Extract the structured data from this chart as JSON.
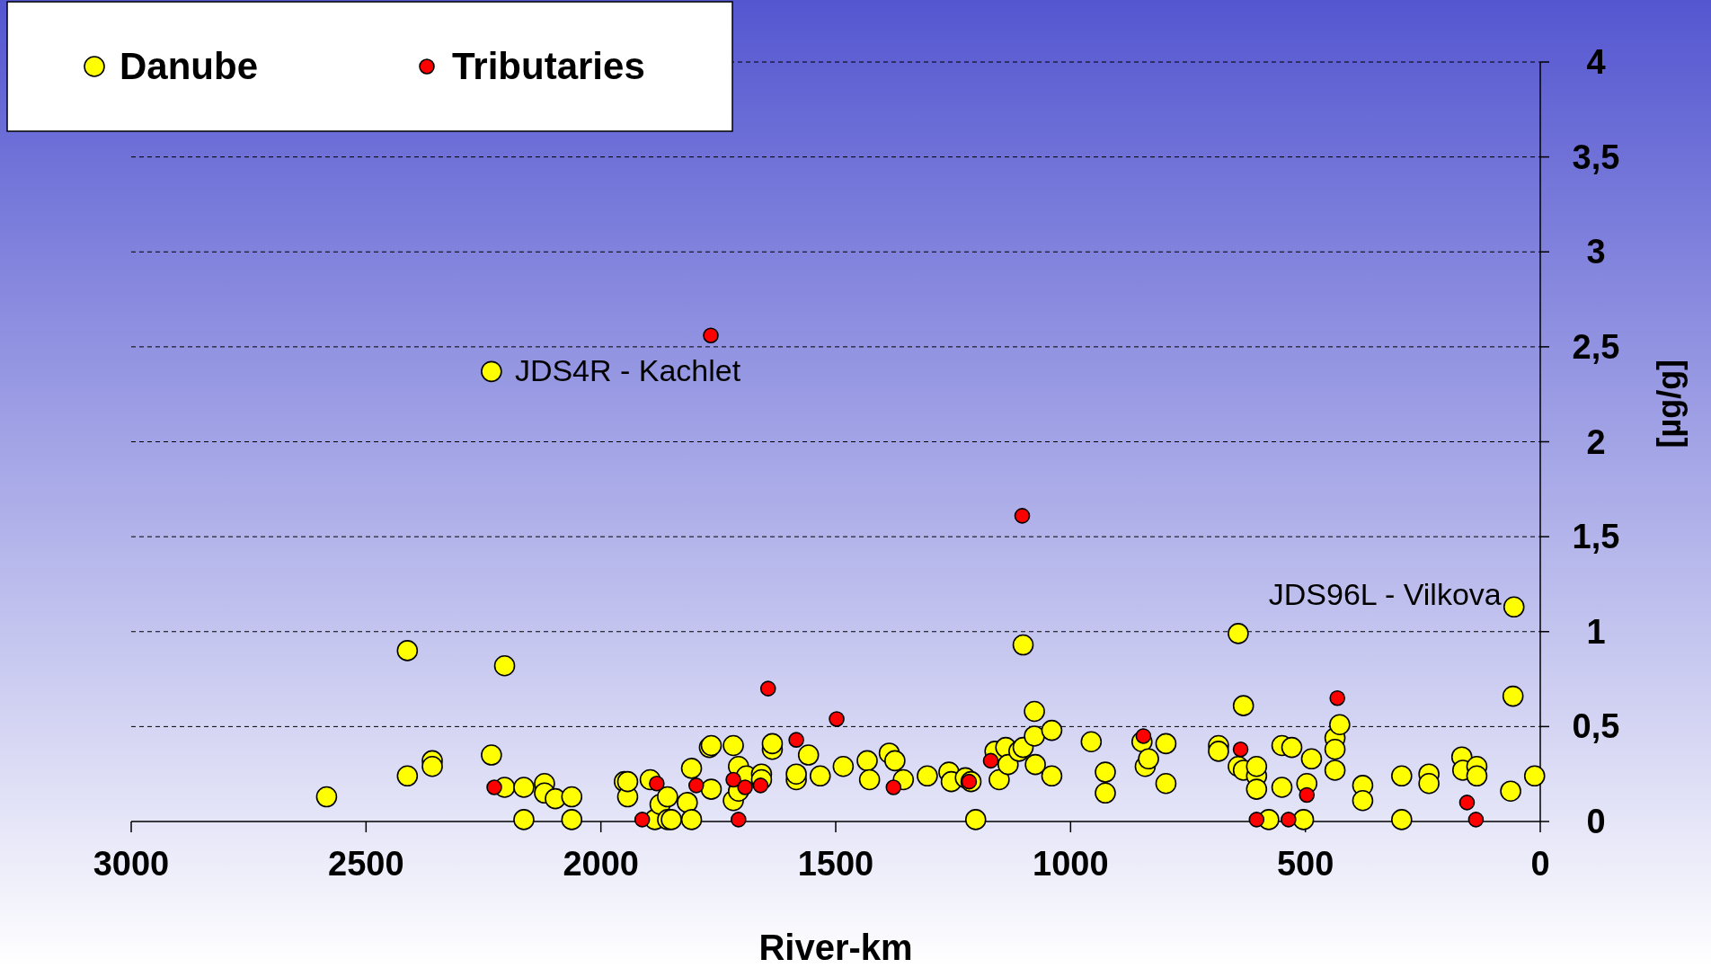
{
  "chart_data": {
    "type": "scatter",
    "xlabel": "River-km",
    "ylabel": "[µg/g]",
    "xlim": [
      3000,
      0
    ],
    "xticks": [
      3000,
      2500,
      2000,
      1500,
      1000,
      500,
      0
    ],
    "ylim": [
      0,
      4
    ],
    "yticks": [
      0,
      {
        "value": 0.5,
        "label": "0,5"
      },
      1,
      {
        "value": 1.5,
        "label": "1,5"
      },
      2,
      {
        "value": 2.5,
        "label": "2,5"
      },
      3,
      {
        "value": 3.5,
        "label": "3,5"
      },
      4
    ],
    "grid": "y",
    "legend": "top left",
    "marker": "circle",
    "annotations": [
      {
        "text": "JDS4R - Kachlet",
        "x": 2233,
        "y": 2.37
      },
      {
        "text": "JDS96L - Vilkova",
        "x": 56,
        "y": 1.13
      }
    ],
    "series": [
      {
        "name": "Danube",
        "color": "#ffff00",
        "x": [
          2584,
          2412,
          2412,
          2359,
          2359,
          2233,
          2233,
          2205,
          2205,
          2164,
          2164,
          2120,
          2120,
          2097,
          2062,
          2062,
          1950,
          1943,
          1943,
          1895,
          1885,
          1874,
          1858,
          1858,
          1850,
          1816,
          1807,
          1807,
          1769,
          1765,
          1765,
          1718,
          1718,
          1707,
          1707,
          1690,
          1658,
          1658,
          1635,
          1635,
          1584,
          1584,
          1558,
          1533,
          1484,
          1433,
          1428,
          1386,
          1374,
          1356,
          1305,
          1259,
          1254,
          1224,
          1212,
          1202,
          1161,
          1152,
          1138,
          1133,
          1110,
          1101,
          1101,
          1077,
          1077,
          1075,
          1040,
          1040,
          956,
          926,
          926,
          848,
          841,
          834,
          797,
          797,
          685,
          685,
          643,
          643,
          632,
          632,
          604,
          604,
          604,
          578,
          550,
          550,
          529,
          504,
          497,
          487,
          437,
          437,
          437,
          427,
          378,
          378,
          295,
          295,
          237,
          237,
          167,
          165,
          135,
          135,
          63,
          58,
          56,
          12
        ],
        "values": [
          0.13,
          0.24,
          0.9,
          0.32,
          0.29,
          2.37,
          0.35,
          0.82,
          0.18,
          0.18,
          0.01,
          0.2,
          0.15,
          0.12,
          0.13,
          0.01,
          0.21,
          0.13,
          0.21,
          0.22,
          0.01,
          0.09,
          0.13,
          0.01,
          0.01,
          0.1,
          0.01,
          0.28,
          0.39,
          0.4,
          0.17,
          0.4,
          0.11,
          0.16,
          0.29,
          0.24,
          0.25,
          0.22,
          0.38,
          0.41,
          0.22,
          0.25,
          0.35,
          0.24,
          0.29,
          0.32,
          0.22,
          0.36,
          0.32,
          0.22,
          0.24,
          0.26,
          0.21,
          0.23,
          0.21,
          0.01,
          0.37,
          0.22,
          0.39,
          0.3,
          0.37,
          0.93,
          0.39,
          0.58,
          0.45,
          0.3,
          0.48,
          0.24,
          0.42,
          0.26,
          0.15,
          0.42,
          0.29,
          0.33,
          0.41,
          0.2,
          0.4,
          0.37,
          0.99,
          0.29,
          0.61,
          0.27,
          0.24,
          0.17,
          0.29,
          0.01,
          0.18,
          0.4,
          0.39,
          0.01,
          0.2,
          0.33,
          0.44,
          0.38,
          0.27,
          0.51,
          0.19,
          0.11,
          0.24,
          0.01,
          0.25,
          0.2,
          0.34,
          0.27,
          0.29,
          0.24,
          0.16,
          0.66,
          1.13,
          0.24
        ]
      },
      {
        "name": "Tributaries",
        "color": "#ff0000",
        "x": [
          2227,
          1881,
          1912,
          1797,
          1766,
          1718,
          1707,
          1693,
          1660,
          1644,
          1584,
          1498,
          1377,
          1216,
          1170,
          1103,
          845,
          638,
          604,
          536,
          497,
          432,
          156,
          137
        ],
        "values": [
          0.18,
          0.2,
          0.01,
          0.19,
          2.56,
          0.22,
          0.01,
          0.18,
          0.19,
          0.7,
          0.43,
          0.54,
          0.18,
          0.21,
          0.32,
          1.61,
          0.45,
          0.38,
          0.01,
          0.01,
          0.14,
          0.65,
          0.1,
          0.01
        ]
      }
    ]
  }
}
